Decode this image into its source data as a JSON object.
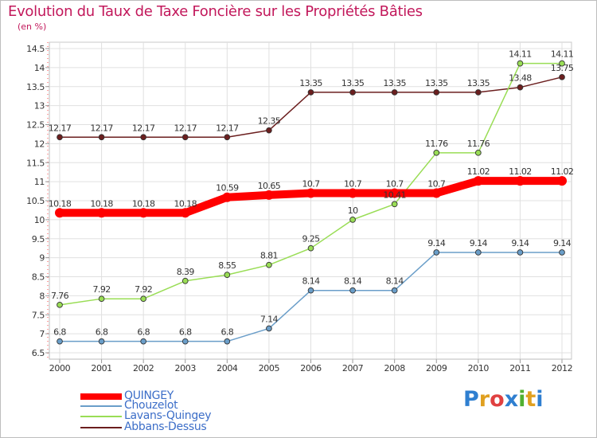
{
  "chart_data": {
    "type": "line",
    "title": "Evolution du Taux de Taxe Foncière sur les Propriétés Bâties",
    "ylabel": "(en %)",
    "xlabel": "",
    "ylim": [
      6.5,
      14.5
    ],
    "yticks": [
      "6.5",
      "7",
      "7.5",
      "8",
      "8.5",
      "9",
      "9.5",
      "10",
      "10.5",
      "11",
      "11.5",
      "12",
      "12.5",
      "13",
      "13.5",
      "14",
      "14.5"
    ],
    "categories": [
      "2000",
      "2001",
      "2002",
      "2003",
      "2004",
      "2005",
      "2006",
      "2007",
      "2008",
      "2009",
      "2010",
      "2011",
      "2012"
    ],
    "series": [
      {
        "name": "Abbans-Dessus",
        "color": "#6b1e1e",
        "highlight": false,
        "values": [
          12.17,
          12.17,
          12.17,
          12.17,
          12.17,
          12.35,
          13.35,
          13.35,
          13.35,
          13.35,
          13.35,
          13.48,
          13.75
        ],
        "labels": [
          "12.17",
          "12.17",
          "12.17",
          "12.17",
          "12.17",
          "12.35",
          "13.35",
          "13.35",
          "13.35",
          "13.35",
          "13.35",
          "13.48",
          "13.75"
        ]
      },
      {
        "name": "Lavans-Quingey",
        "color": "#99dd55",
        "highlight": false,
        "values": [
          7.76,
          7.92,
          7.92,
          8.39,
          8.55,
          8.81,
          9.25,
          10,
          10.41,
          11.76,
          11.76,
          14.11,
          14.11
        ],
        "labels": [
          "7.76",
          "7.92",
          "7.92",
          "8.39",
          "8.55",
          "8.81",
          "9.25",
          "10",
          "10.41",
          "11.76",
          "11.76",
          "14.11",
          "14.11"
        ]
      },
      {
        "name": "Chouzelot",
        "color": "#6a9ec9",
        "highlight": false,
        "values": [
          6.8,
          6.8,
          6.8,
          6.8,
          6.8,
          7.14,
          8.14,
          8.14,
          8.14,
          9.14,
          9.14,
          9.14,
          9.14
        ],
        "labels": [
          "6.8",
          "6.8",
          "6.8",
          "6.8",
          "6.8",
          "7.14",
          "8.14",
          "8.14",
          "8.14",
          "9.14",
          "9.14",
          "9.14",
          "9.14"
        ]
      },
      {
        "name": "QUINGEY",
        "color": "#ff0000",
        "highlight": true,
        "values": [
          10.18,
          10.18,
          10.18,
          10.18,
          10.59,
          10.65,
          10.7,
          10.7,
          10.7,
          10.7,
          11.02,
          11.02,
          11.02
        ],
        "labels": [
          "10.18",
          "10.18",
          "10.18",
          "10.18",
          "10.59",
          "10.65",
          "10.7",
          "10.7",
          "10.7",
          "10.7",
          "11.02",
          "11.02",
          "11.02"
        ]
      }
    ],
    "legend": [
      {
        "name": "QUINGEY",
        "color": "#ff0000",
        "label_color": "#3c6ec8",
        "thick": true
      },
      {
        "name": "Chouzelot",
        "color": "#6a9ec9",
        "label_color": "#3c6ec8",
        "thick": false
      },
      {
        "name": "Lavans-Quingey",
        "color": "#99dd55",
        "label_color": "#3c6ec8",
        "thick": false
      },
      {
        "name": "Abbans-Dessus",
        "color": "#6b1e1e",
        "label_color": "#3c6ec8",
        "thick": false
      }
    ]
  },
  "logo": {
    "text": "Proxiti",
    "letters": [
      "P",
      "r",
      "o",
      "x",
      "i",
      "t",
      "i"
    ],
    "colors": [
      "#2f7fd0",
      "#e0a020",
      "#e04040",
      "#2f7fd0",
      "#50b030",
      "#e0a020",
      "#2f7fd0"
    ]
  }
}
